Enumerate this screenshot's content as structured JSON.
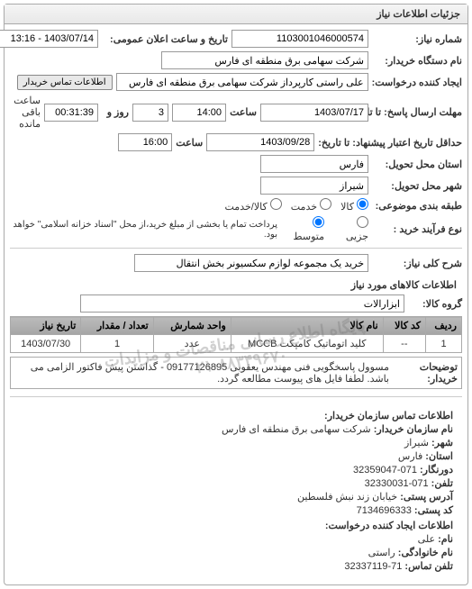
{
  "panel": {
    "title": "جزئیات اطلاعات نیاز"
  },
  "form": {
    "reqNo": {
      "label": "شماره نیاز:",
      "value": "1103001046000574"
    },
    "pubDate": {
      "label": "تاریخ و ساعت اعلان عمومی:",
      "value": "1403/07/14 - 13:16"
    },
    "buyerOrg": {
      "label": "نام دستگاه خریدار:",
      "value": "شرکت سهامی برق منطقه ای فارس"
    },
    "creator": {
      "label": "ایجاد کننده درخواست:",
      "value": "علی راستی کارپرداز شرکت سهامی برق منطقه ای فارس"
    },
    "buyerContactBtn": "اطلاعات تماس خریدار",
    "deadline": {
      "label": "مهلت ارسال پاسخ: تا تاریخ:",
      "date": "1403/07/17",
      "timeLbl": "ساعت",
      "time": "14:00",
      "daysLbl": "روز و",
      "days": "3",
      "remainLbl": "ساعت باقی مانده",
      "remain": "00:31:39"
    },
    "validity": {
      "label": "حداقل تاریخ اعتبار پیشنهاد: تا تاریخ:",
      "date": "1403/09/28",
      "timeLbl": "ساعت",
      "time": "16:00"
    },
    "province": {
      "label": "استان محل تحویل:",
      "value": "فارس"
    },
    "city": {
      "label": "شهر محل تحویل:",
      "value": "شیراز"
    },
    "category": {
      "label": "طبقه بندی موضوعی:",
      "opts": [
        {
          "label": "کالا",
          "checked": true
        },
        {
          "label": "خدمت",
          "checked": false
        },
        {
          "label": "کالا/خدمت",
          "checked": false
        }
      ]
    },
    "procType": {
      "label": "نوع فرآیند خرید :",
      "opts": [
        {
          "label": "جزیی",
          "checked": false
        },
        {
          "label": "متوسط",
          "checked": true
        }
      ],
      "note": "پرداخت تمام یا بخشی از مبلغ خرید،از محل \"اسناد خزانه اسلامی\" خواهد بود."
    },
    "summary": {
      "label": "شرح کلی نیاز:",
      "value": "خرید یک مجموعه لوازم سکسیونر بخش انتقال"
    }
  },
  "goods": {
    "title": "اطلاعات کالاهای مورد نیاز",
    "group": {
      "label": "گروه کالا:",
      "value": "ابزارالات"
    },
    "cols": [
      "ردیف",
      "کد کالا",
      "نام کالا",
      "واحد شمارش",
      "تعداد / مقدار",
      "تاریخ نیاز"
    ],
    "rows": [
      {
        "idx": "1",
        "code": "--",
        "name": "کلید اتوماتیک کامپکت MCCB",
        "unit": "عدد",
        "qty": "1",
        "date": "1403/07/30"
      }
    ]
  },
  "desc": {
    "label": "توضیحات خریدار:",
    "text": "مسوول پاسخگویی فنی مهندس یعقوبی 09177126895 - گذاشتن پیش فاکتور الزامی می باشد. لطفا فایل های پیوست مطالعه گردد."
  },
  "watermark": {
    "line1": "پایگاه اطلاع رسانی مناقصات و مزایدات",
    "line2": "۰۲۱-۸۸۳۴۹۶۷۰"
  },
  "contact": {
    "title": "اطلاعات تماس سازمان خریدار:",
    "lines": [
      {
        "k": "نام سازمان خریدار:",
        "v": "شرکت سهامی برق منطقه ای فارس"
      },
      {
        "k": "شهر:",
        "v": "شیراز"
      },
      {
        "k": "استان:",
        "v": "فارس"
      },
      {
        "k": "دورنگار:",
        "v": "071-32359047"
      },
      {
        "k": "تلفن:",
        "v": "071-32330031"
      },
      {
        "k": "آدرس پستی:",
        "v": "خیابان زند نبش فلسطین"
      },
      {
        "k": "کد پستی:",
        "v": "7134696333"
      }
    ],
    "creatorTitle": "اطلاعات ایجاد کننده درخواست:",
    "creatorLines": [
      {
        "k": "نام:",
        "v": "علی"
      },
      {
        "k": "نام خانوادگی:",
        "v": "راستی"
      },
      {
        "k": "تلفن تماس:",
        "v": "71-32337119"
      }
    ]
  }
}
